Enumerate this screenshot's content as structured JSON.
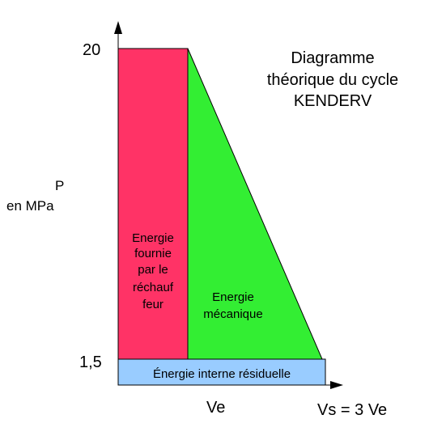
{
  "title_lines": [
    "Diagramme",
    "théorique du cycle",
    "KENDERV"
  ],
  "y_axis": {
    "label_lines": [
      "P",
      "en MPa"
    ],
    "ticks": [
      "20",
      "1,5"
    ]
  },
  "x_axis": {
    "ticks": [
      "Ve",
      "Vs = 3 Ve"
    ]
  },
  "regions": {
    "heater": {
      "label_lines": [
        "Energie",
        "fournie",
        "par le",
        "réchauf",
        "feur"
      ],
      "color": "#ff3366"
    },
    "mechanical": {
      "label_lines": [
        "Energie",
        "mécanique"
      ],
      "color": "#33ee33"
    },
    "residual": {
      "label": "Énergie interne résiduelle",
      "color": "#99ccff"
    }
  }
}
